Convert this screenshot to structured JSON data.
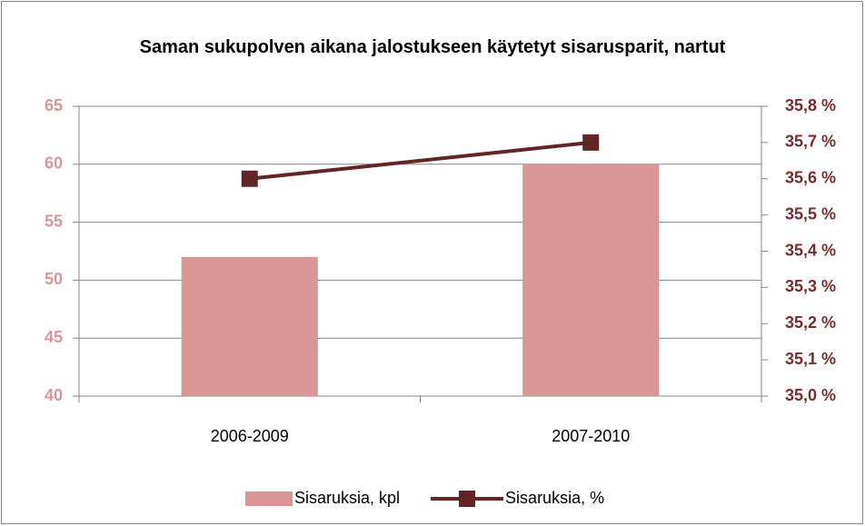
{
  "chart_data": {
    "type": "combo",
    "title": "Saman sukupolven aikana jalostukseen käytetyt sisarusparit, nartut",
    "categories": [
      "2006-2009",
      "2007-2010"
    ],
    "series": [
      {
        "name": "Sisaruksia, kpl",
        "type": "bar",
        "color": "#d99694",
        "values": [
          52,
          60
        ]
      },
      {
        "name": "Sisaruksia, %",
        "type": "line",
        "axis": "y2",
        "color": "#632523",
        "values": [
          35.6,
          35.7
        ]
      }
    ],
    "ylim": [
      40,
      65
    ],
    "yticks": [
      40,
      45,
      50,
      55,
      60,
      65
    ],
    "y2lim": [
      35.0,
      35.8
    ],
    "y2ticks": [
      {
        "value": 35.0,
        "label": "35,0 %"
      },
      {
        "value": 35.1,
        "label": "35,1 %"
      },
      {
        "value": 35.2,
        "label": "35,2 %"
      },
      {
        "value": 35.3,
        "label": "35,3 %"
      },
      {
        "value": 35.4,
        "label": "35,4 %"
      },
      {
        "value": 35.5,
        "label": "35,5 %"
      },
      {
        "value": 35.6,
        "label": "35,6 %"
      },
      {
        "value": 35.7,
        "label": "35,7 %"
      },
      {
        "value": 35.8,
        "label": "35,8 %"
      }
    ],
    "grid": true,
    "legend": "bottom"
  }
}
